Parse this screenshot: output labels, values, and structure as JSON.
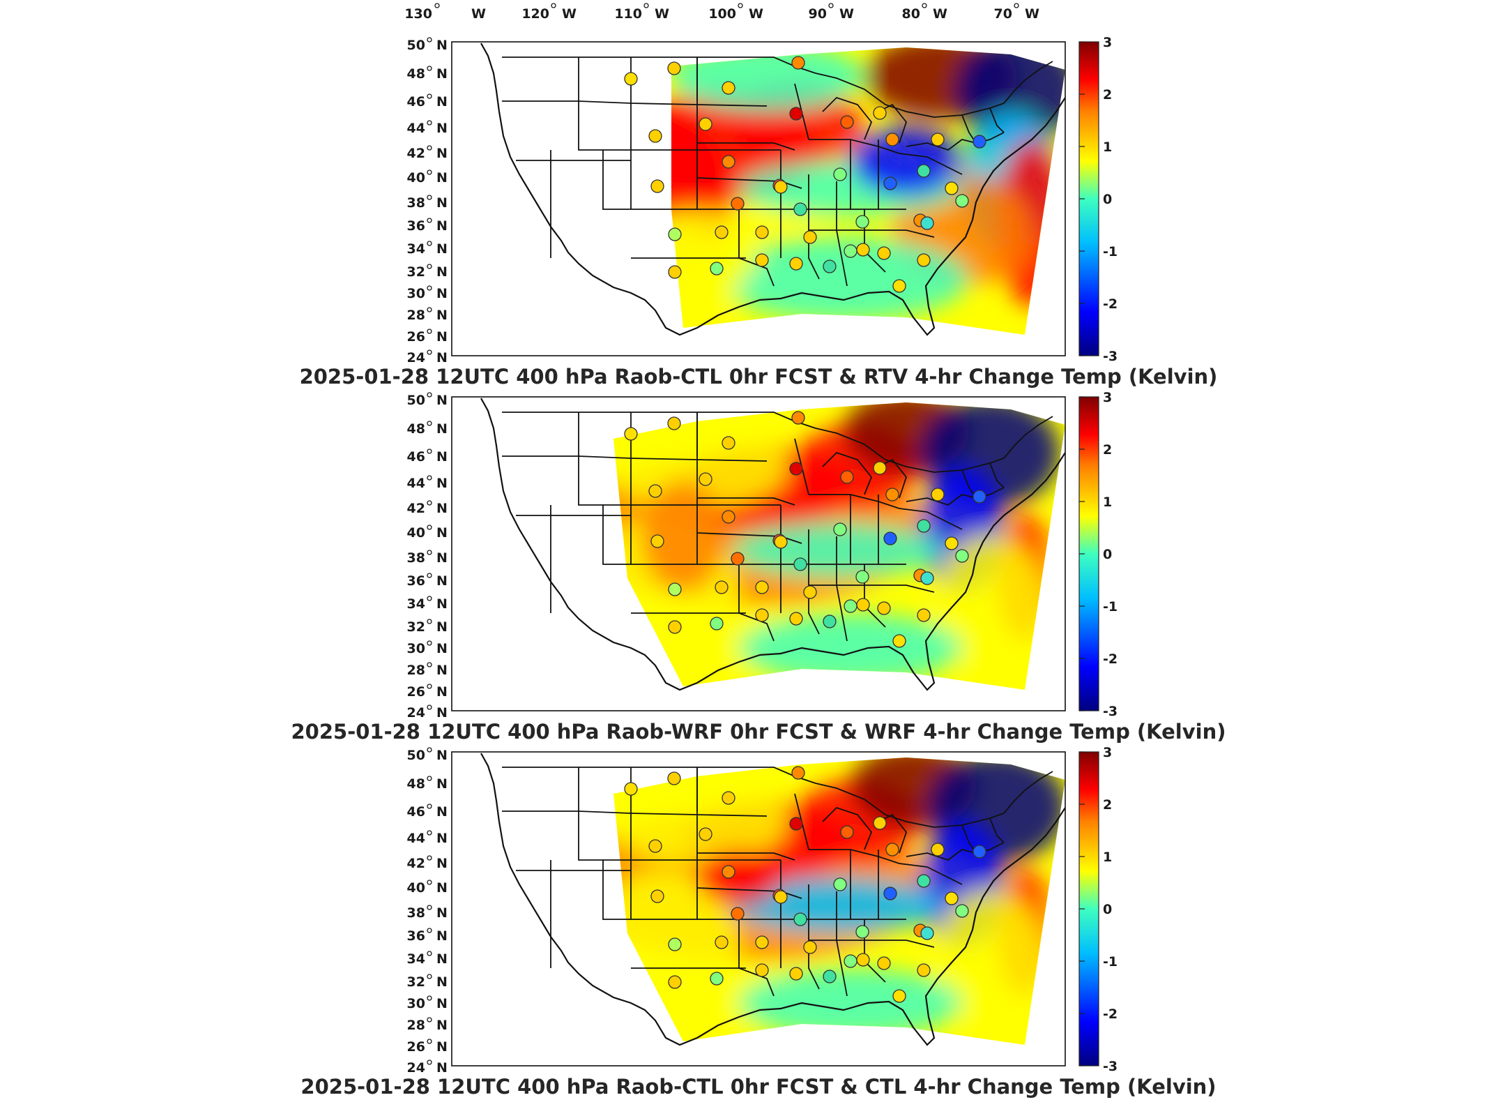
{
  "lon_labels": [
    {
      "deg": "130",
      "hemi": "W"
    },
    {
      "deg": "120",
      "hemi": "W"
    },
    {
      "deg": "110",
      "hemi": "W"
    },
    {
      "deg": "100",
      "hemi": "W"
    },
    {
      "deg": "90",
      "hemi": "W"
    },
    {
      "deg": "80",
      "hemi": "W"
    },
    {
      "deg": "70",
      "hemi": "W"
    }
  ],
  "lat_labels": [
    {
      "deg": "50",
      "hemi": "N"
    },
    {
      "deg": "48",
      "hemi": "N"
    },
    {
      "deg": "46",
      "hemi": "N"
    },
    {
      "deg": "44",
      "hemi": "N"
    },
    {
      "deg": "42",
      "hemi": "N"
    },
    {
      "deg": "40",
      "hemi": "N"
    },
    {
      "deg": "38",
      "hemi": "N"
    },
    {
      "deg": "36",
      "hemi": "N"
    },
    {
      "deg": "34",
      "hemi": "N"
    },
    {
      "deg": "32",
      "hemi": "N"
    },
    {
      "deg": "30",
      "hemi": "N"
    },
    {
      "deg": "28",
      "hemi": "N"
    },
    {
      "deg": "26",
      "hemi": "N"
    },
    {
      "deg": "24",
      "hemi": "N"
    }
  ],
  "colorbar": {
    "ticks": [
      "3",
      "2",
      "1",
      "0",
      "-1",
      "-2",
      "-3"
    ],
    "range": [
      -3,
      3
    ],
    "colormap": [
      "#00007f",
      "#0000ff",
      "#00bfff",
      "#3fffbf",
      "#ffff00",
      "#ff7f00",
      "#ff0000",
      "#7f0000"
    ]
  },
  "panels": [
    {
      "title": "2025-01-28 12UTC 400 hPa Raob-CTL 0hr FCST & RTV 4-hr Change Temp (Kelvin)"
    },
    {
      "title": "2025-01-28 12UTC 400 hPa Raob-WRF 0hr FCST & WRF 4-hr Change Temp (Kelvin)"
    },
    {
      "title": "2025-01-28 12UTC 400 hPa Raob-CTL 0hr FCST & CTL 4-hr Change Temp (Kelvin)"
    }
  ],
  "map": {
    "type": "heatmap",
    "projection": "Lambert conformal, CONUS",
    "variable": "400 hPa temperature change",
    "units": "Kelvin",
    "lon_range": [
      -130,
      -65
    ],
    "lat_range": [
      24,
      50
    ],
    "station_count": 40
  }
}
